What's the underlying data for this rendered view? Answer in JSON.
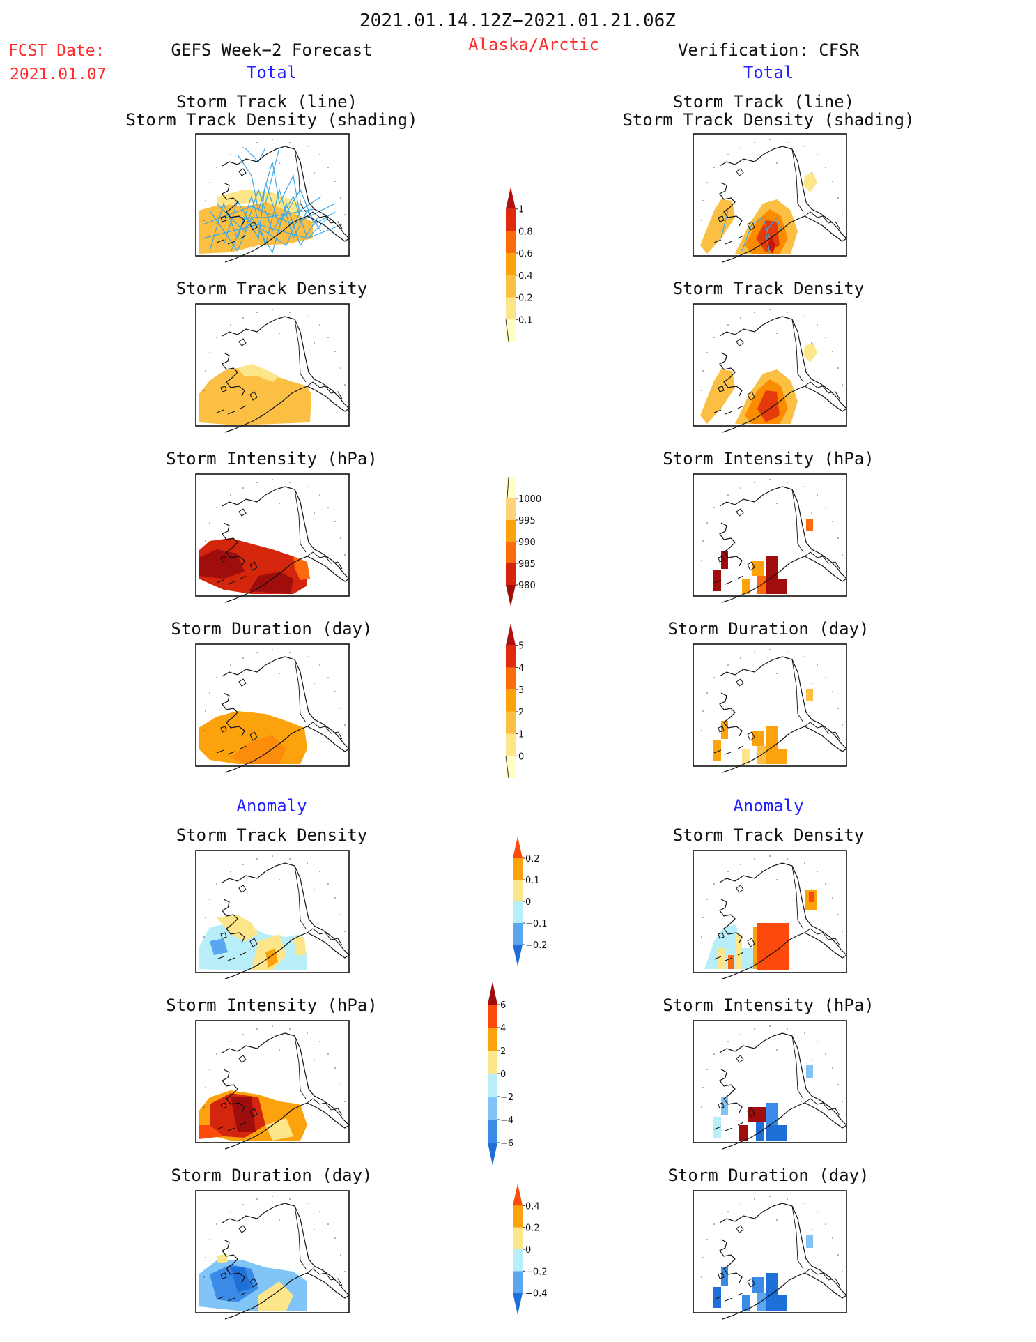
{
  "header": {
    "period": "2021.01.14.12Z−2021.01.21.06Z",
    "region": "Alaska/Arctic",
    "fcst_label": "FCST Date:",
    "fcst_date": "2021.01.07",
    "left_title": "GEFS Week−2 Forecast",
    "right_title": "Verification: CFSR",
    "total_label": "Total",
    "anomaly_label": "Anomaly"
  },
  "colors": {
    "header_red": "#ff2a2a",
    "label_blue": "#2020ff",
    "track_line": "#3aa8e6"
  },
  "panel_titles": {
    "track_line_1": "Storm Track (line)",
    "track_line_2": "Storm Track Density (shading)",
    "density": "Storm Track Density",
    "intensity": "Storm Intensity (hPa)",
    "duration": "Storm Duration (day)"
  },
  "panels": [
    {
      "id": "fc-track",
      "column": "forecast",
      "row": 0,
      "section": "total",
      "field": "track_density",
      "tracks": true,
      "shading": [
        {
          "level": 0.2,
          "color": "#fde68a"
        },
        {
          "level": 0.4,
          "color": "#fbbf44"
        }
      ]
    },
    {
      "id": "ob-track",
      "column": "verification",
      "row": 0,
      "section": "total",
      "field": "track_density",
      "tracks": true,
      "shading": [
        {
          "level": 0.4,
          "color": "#fbbf44"
        },
        {
          "level": 0.6,
          "color": "#fb8c00"
        },
        {
          "level": 0.8,
          "color": "#e53b0c"
        },
        {
          "level": 1.0,
          "color": "#c0190a"
        }
      ]
    },
    {
      "id": "fc-density",
      "column": "forecast",
      "row": 1,
      "section": "total",
      "field": "track_density",
      "tracks": false
    },
    {
      "id": "ob-density",
      "column": "verification",
      "row": 1,
      "section": "total",
      "field": "track_density",
      "tracks": false
    },
    {
      "id": "fc-intensity",
      "column": "forecast",
      "row": 2,
      "section": "total",
      "field": "intensity",
      "tracks": false
    },
    {
      "id": "ob-intensity",
      "column": "verification",
      "row": 2,
      "section": "total",
      "field": "intensity",
      "tracks": false
    },
    {
      "id": "fc-duration",
      "column": "forecast",
      "row": 3,
      "section": "total",
      "field": "duration",
      "tracks": false
    },
    {
      "id": "ob-duration",
      "column": "verification",
      "row": 3,
      "section": "total",
      "field": "duration",
      "tracks": false
    },
    {
      "id": "fc-density-anom",
      "column": "forecast",
      "row": 4,
      "section": "anomaly",
      "field": "track_density",
      "tracks": false
    },
    {
      "id": "ob-density-anom",
      "column": "verification",
      "row": 4,
      "section": "anomaly",
      "field": "track_density",
      "tracks": false
    },
    {
      "id": "fc-intensity-anom",
      "column": "forecast",
      "row": 5,
      "section": "anomaly",
      "field": "intensity",
      "tracks": false
    },
    {
      "id": "ob-intensity-anom",
      "column": "verification",
      "row": 5,
      "section": "anomaly",
      "field": "intensity",
      "tracks": false
    },
    {
      "id": "fc-duration-anom",
      "column": "forecast",
      "row": 6,
      "section": "anomaly",
      "field": "duration",
      "tracks": false
    },
    {
      "id": "ob-duration-anom",
      "column": "verification",
      "row": 6,
      "section": "anomaly",
      "field": "duration",
      "tracks": false
    }
  ],
  "colorbars": [
    {
      "id": "cb-density",
      "labels": [
        "0.1",
        "0.2",
        "0.4",
        "0.6",
        "0.8",
        "1"
      ],
      "colors": [
        "#ffffc8",
        "#fde68a",
        "#fbbf44",
        "#fba20c",
        "#fb6a0c",
        "#e02a0c",
        "#b01010"
      ],
      "low_cap": "line",
      "high_cap": "arrow"
    },
    {
      "id": "cb-intensity",
      "labels": [
        "980",
        "985",
        "990",
        "995",
        "1000"
      ],
      "colors": [
        "#a00d0d",
        "#d4260c",
        "#fb6a0c",
        "#fba20c",
        "#ffd37a",
        "#ffffc8"
      ],
      "low_cap": "arrow",
      "high_cap": "line"
    },
    {
      "id": "cb-duration",
      "labels": [
        "0",
        "1",
        "2",
        "3",
        "4",
        "5"
      ],
      "colors": [
        "#ffffc8",
        "#fde68a",
        "#fbbf44",
        "#fba20c",
        "#fb6a0c",
        "#e02a0c",
        "#b01010"
      ],
      "low_cap": "line",
      "high_cap": "arrow"
    },
    {
      "id": "cb-density-anom",
      "labels": [
        "−0.2",
        "−0.1",
        "0",
        "0.1",
        "0.2"
      ],
      "colors": [
        "#1f6fd8",
        "#5aa6f0",
        "#b8eef8",
        "#fde68a",
        "#fba20c",
        "#fb4a0c"
      ],
      "low_cap": "arrow",
      "high_cap": "arrow"
    },
    {
      "id": "cb-intensity-anom",
      "labels": [
        "−6",
        "−4",
        "−2",
        "0",
        "2",
        "4",
        "6"
      ],
      "colors": [
        "#1f6fd8",
        "#3a8ae8",
        "#80c4f8",
        "#b8eef8",
        "#fde68a",
        "#fba20c",
        "#fb4a0c",
        "#a00d0d"
      ],
      "low_cap": "arrow",
      "high_cap": "arrow"
    },
    {
      "id": "cb-duration-anom",
      "labels": [
        "−0.4",
        "−0.2",
        "0",
        "0.2",
        "0.4"
      ],
      "colors": [
        "#1f6fd8",
        "#5aa6f0",
        "#b8eef8",
        "#fde68a",
        "#fba20c",
        "#fb4a0c"
      ],
      "low_cap": "arrow",
      "high_cap": "arrow"
    }
  ]
}
